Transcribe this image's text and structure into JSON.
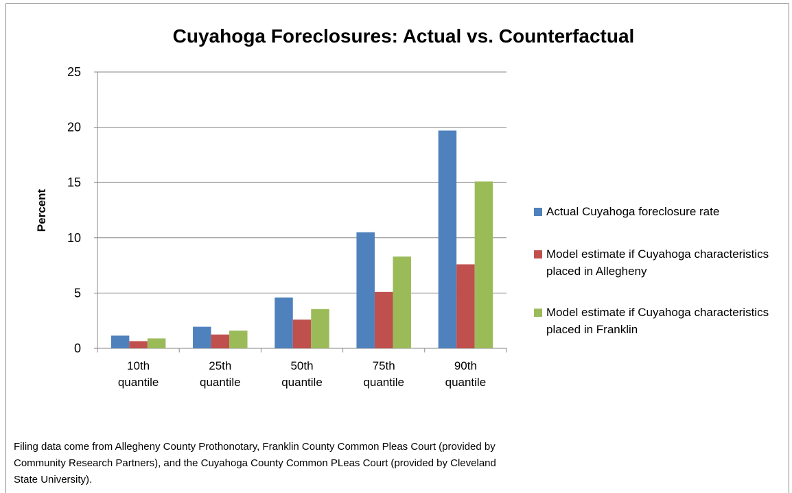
{
  "chart_data": {
    "type": "bar",
    "title": "Cuyahoga Foreclosures: Actual vs. Counterfactual",
    "y_label": "Percent",
    "categories": [
      "10th quantile",
      "25th quantile",
      "50th quantile",
      "75th quantile",
      "90th quantile"
    ],
    "series": [
      {
        "name": "Actual Cuyahoga foreclosure rate",
        "color": "#4f81bd",
        "values": [
          1.15,
          1.95,
          4.6,
          10.5,
          19.7
        ]
      },
      {
        "name": "Model estimate if Cuyahoga characteristics placed in Allegheny",
        "color": "#c0504d",
        "values": [
          0.65,
          1.25,
          2.6,
          5.1,
          7.6
        ]
      },
      {
        "name": "Model estimate if Cuyahoga characteristics placed in Franklin",
        "color": "#9bbb59",
        "values": [
          0.9,
          1.6,
          3.55,
          8.3,
          15.1
        ]
      }
    ],
    "ylim": [
      0,
      25
    ],
    "yticks": [
      0,
      5,
      10,
      15,
      20,
      25
    ],
    "grid": true,
    "legend": "right",
    "note": "Filing data come from Allegheny County Prothonotary, Franklin County Common Pleas Court (provided by Community Research Partners), and the Cuyahoga County Common PLeas Court (provided by Cleveland State University)."
  }
}
